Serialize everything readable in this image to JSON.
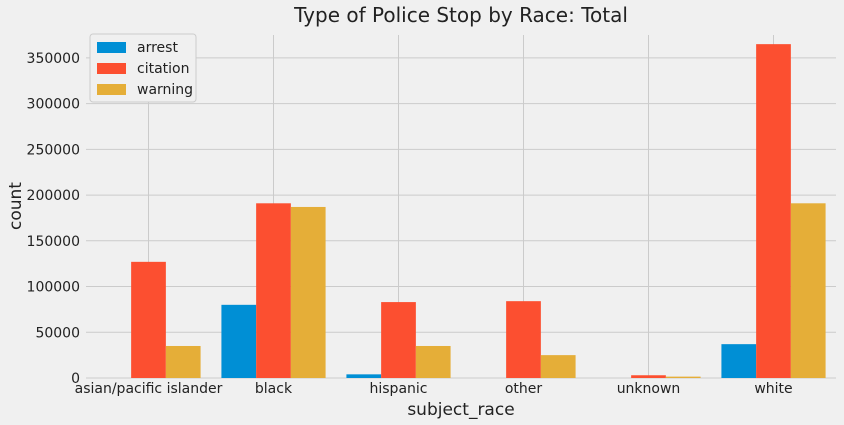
{
  "chart_data": {
    "type": "bar",
    "title": "Type of Police Stop by Race: Total",
    "xlabel": "subject_race",
    "ylabel": "count",
    "categories": [
      "asian/pacific islander",
      "black",
      "hispanic",
      "other",
      "unknown",
      "white"
    ],
    "series": [
      {
        "name": "arrest",
        "color": "#008fd5",
        "values": [
          0,
          80000,
          4000,
          0,
          0,
          37000
        ]
      },
      {
        "name": "citation",
        "color": "#fc4f30",
        "values": [
          127000,
          191000,
          83000,
          84000,
          3000,
          365000
        ]
      },
      {
        "name": "warning",
        "color": "#e5ae38",
        "values": [
          35000,
          187000,
          35000,
          25000,
          1500,
          191000
        ]
      }
    ],
    "ylim": [
      0,
      375000
    ],
    "yticks": [
      0,
      50000,
      100000,
      150000,
      200000,
      250000,
      300000,
      350000
    ],
    "grid": true,
    "legend_position": "top-left"
  }
}
